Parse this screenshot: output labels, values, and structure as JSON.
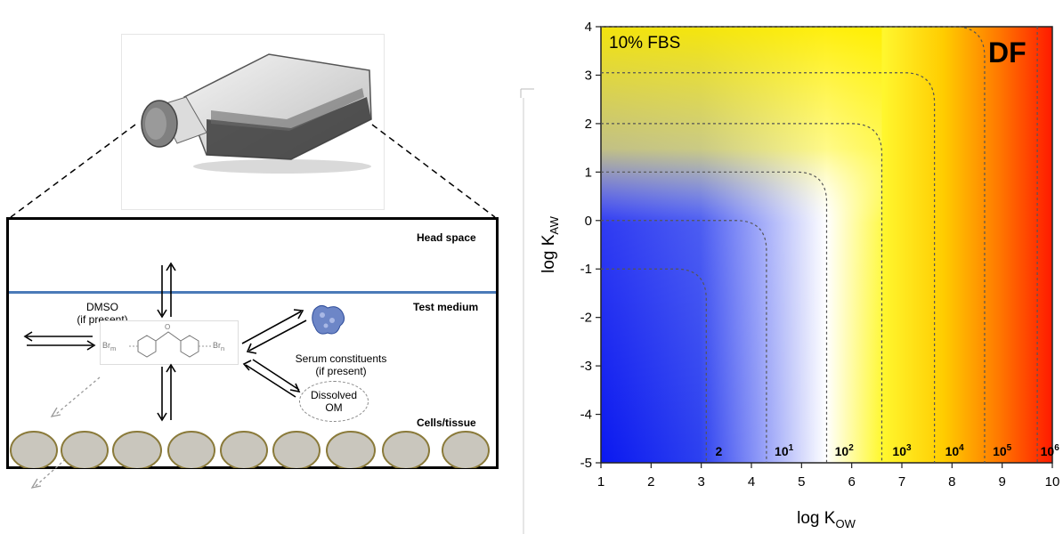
{
  "left_diagram": {
    "flask_image": "cell-culture-flask",
    "layers": {
      "head_space": "Head space",
      "test_medium": "Test medium",
      "cells_tissue": "Cells/tissue"
    },
    "dmso": {
      "line1": "DMSO",
      "line2": "(if present)"
    },
    "serum": {
      "line1": "Serum constituents",
      "line2": "(if present)"
    },
    "dissolved_om": {
      "line1": "Dissolved",
      "line2": "OM"
    },
    "molecule": {
      "left_sub": "Br",
      "left_idx": "m",
      "right_sub": "Br",
      "right_idx": "n"
    },
    "cells_count": 9,
    "colors": {
      "interface_line": "#4a7ab8",
      "cell_fill": "#c9c6bd",
      "cell_edge": "#8a7a3a"
    }
  },
  "chart_data": {
    "type": "heatmap",
    "title": "",
    "panel_label": "DF",
    "condition_label": "10% FBS",
    "xlabel": "log K",
    "xlabel_sub": "OW",
    "ylabel": "log K",
    "ylabel_sub": "AW",
    "xlim": [
      1,
      10
    ],
    "ylim": [
      -5,
      4
    ],
    "x_ticks": [
      "1",
      "2",
      "3",
      "4",
      "5",
      "6",
      "7",
      "8",
      "9",
      "10"
    ],
    "y_ticks": [
      "-5",
      "-4",
      "-3",
      "-2",
      "-1",
      "0",
      "1",
      "2",
      "3",
      "4"
    ],
    "contour_labels": [
      {
        "base": "2",
        "exp": ""
      },
      {
        "base": "10",
        "exp": "1"
      },
      {
        "base": "10",
        "exp": "2"
      },
      {
        "base": "10",
        "exp": "3"
      },
      {
        "base": "10",
        "exp": "4"
      },
      {
        "base": "10",
        "exp": "5"
      },
      {
        "base": "10",
        "exp": "6"
      }
    ],
    "contours": [
      {
        "label": "2",
        "x_asym": 3.1,
        "y_asym": -1.0
      },
      {
        "label": "10^1",
        "x_asym": 4.3,
        "y_asym": 0.0
      },
      {
        "label": "10^2",
        "x_asym": 5.5,
        "y_asym": 1.0
      },
      {
        "label": "10^3",
        "x_asym": 6.6,
        "y_asym": 2.0
      },
      {
        "label": "10^4",
        "x_asym": 7.65,
        "y_asym": 3.05
      },
      {
        "label": "10^5",
        "x_asym": 8.65,
        "y_asym": 4.0
      }
    ],
    "colorscale": [
      "#0a18f0",
      "#ffffff",
      "#fff400",
      "#ffb000",
      "#ff1a00"
    ]
  }
}
